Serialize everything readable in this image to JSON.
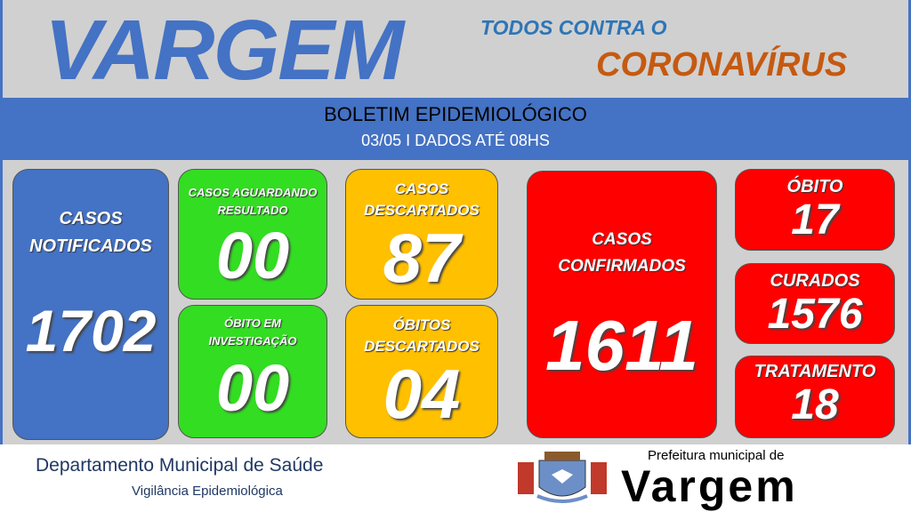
{
  "header": {
    "title": "VARGEM",
    "subtitle_top": "TODOS CONTRA O",
    "subtitle_bottom": "CORONAVÍRUS"
  },
  "band": {
    "title": "BOLETIM EPIDEMIOLÓGICO",
    "date": "03/05 I DADOS ATÉ 08HS"
  },
  "stats": {
    "notificados": {
      "label": "CASOS NOTIFICADOS",
      "value": "1702"
    },
    "aguardando": {
      "label": "CASOS AGUARDANDO RESULTADO",
      "value": "00"
    },
    "obito_investigacao": {
      "label": "ÓBITO EM INVESTIGAÇÃO",
      "value": "00"
    },
    "descartados": {
      "label": "CASOS DESCARTADOS",
      "value": "87"
    },
    "obitos_descartados": {
      "label": "ÓBITOS DESCARTADOS",
      "value": "04"
    },
    "confirmados": {
      "label": "CASOS CONFIRMADOS",
      "value": "1611"
    },
    "obito": {
      "label": "ÓBITO",
      "value": "17"
    },
    "curados": {
      "label": "CURADOS",
      "value": "1576"
    },
    "tratamento": {
      "label": "TRATAMENTO",
      "value": "18"
    }
  },
  "footer": {
    "department": "Departamento Municipal de Saúde",
    "division": "Vigilância Epidemiológica",
    "logo_top": "Prefeitura municipal de",
    "logo_name": "Vargem"
  },
  "colors": {
    "blue": "#4472c4",
    "green": "#33dd22",
    "yellow": "#ffc000",
    "red": "#ff0000",
    "orange": "#c55a11"
  }
}
